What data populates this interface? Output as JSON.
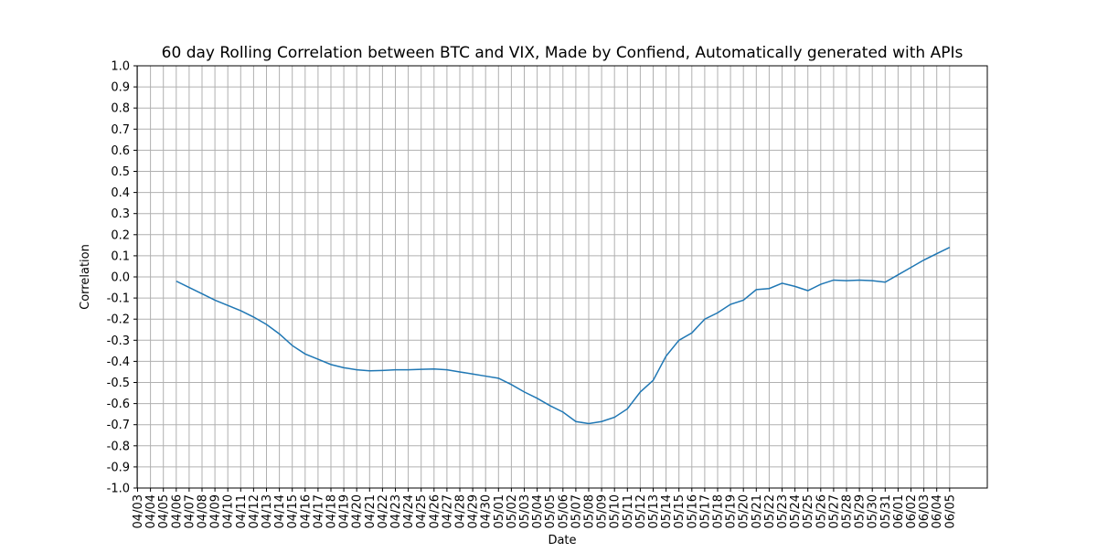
{
  "chart_data": {
    "type": "line",
    "title": "60 day Rolling Correlation between BTC and VIX, Made by Confiend, Automatically generated with APIs",
    "xlabel": "Date",
    "ylabel": "Correlation",
    "ylim": [
      -1.0,
      1.0
    ],
    "yticks": [
      "-1.0",
      "-0.9",
      "-0.8",
      "-0.7",
      "-0.6",
      "-0.5",
      "-0.4",
      "-0.3",
      "-0.2",
      "-0.1",
      "0.0",
      "0.1",
      "0.2",
      "0.3",
      "0.4",
      "0.5",
      "0.6",
      "0.7",
      "0.8",
      "0.9",
      "1.0"
    ],
    "grid": true,
    "categories": [
      "04/03",
      "04/04",
      "04/05",
      "04/06",
      "04/07",
      "04/08",
      "04/09",
      "04/10",
      "04/11",
      "04/12",
      "04/13",
      "04/14",
      "04/15",
      "04/16",
      "04/17",
      "04/18",
      "04/19",
      "04/20",
      "04/21",
      "04/22",
      "04/23",
      "04/24",
      "04/25",
      "04/26",
      "04/27",
      "04/28",
      "04/29",
      "04/30",
      "05/01",
      "05/02",
      "05/03",
      "05/04",
      "05/05",
      "05/06",
      "05/07",
      "05/08",
      "05/09",
      "05/10",
      "05/11",
      "05/12",
      "05/13",
      "05/14",
      "05/15",
      "05/16",
      "05/17",
      "05/18",
      "05/19",
      "05/20",
      "05/21",
      "05/22",
      "05/23",
      "05/24",
      "05/25",
      "05/26",
      "05/27",
      "05/28",
      "05/29",
      "05/30",
      "05/31",
      "06/01",
      "06/02",
      "06/03",
      "06/04",
      "06/05"
    ],
    "series": [
      {
        "values": [
          null,
          null,
          null,
          -0.02,
          -0.05,
          -0.08,
          -0.11,
          -0.135,
          -0.16,
          -0.19,
          -0.225,
          -0.27,
          -0.325,
          -0.365,
          -0.39,
          -0.415,
          -0.43,
          -0.44,
          -0.445,
          -0.443,
          -0.44,
          -0.44,
          -0.438,
          -0.436,
          -0.44,
          -0.45,
          -0.46,
          -0.47,
          -0.48,
          -0.51,
          -0.545,
          -0.575,
          -0.61,
          -0.64,
          -0.685,
          -0.695,
          -0.685,
          -0.665,
          -0.625,
          -0.545,
          -0.49,
          -0.375,
          -0.3,
          -0.265,
          -0.2,
          -0.17,
          -0.13,
          -0.11,
          -0.06,
          -0.055,
          -0.03,
          -0.045,
          -0.065,
          -0.035,
          -0.015,
          -0.018,
          -0.015,
          -0.018,
          -0.025,
          0.01,
          0.045,
          0.08,
          0.11,
          0.14
        ],
        "color": "#1f77b4"
      }
    ]
  }
}
